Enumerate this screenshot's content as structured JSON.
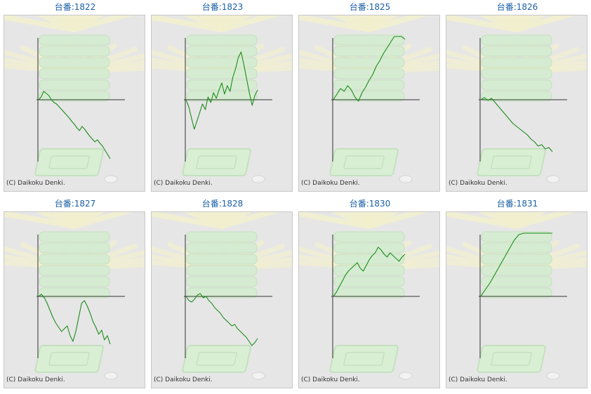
{
  "colors": {
    "title": "#1a5fa6",
    "line": "#1a8c1a",
    "axis": "#333333",
    "panel_bg": "#e6e6e6"
  },
  "copyright": "(C) Daikoku Denki.",
  "chart_data": [
    {
      "type": "line",
      "title": "台番:1822",
      "values": [
        0,
        4,
        12,
        9,
        6,
        0,
        -4,
        -6,
        -10,
        -14,
        -18,
        -22,
        -26,
        -31,
        -35,
        -40,
        -44,
        -38,
        -42,
        -47,
        -52,
        -56,
        -60,
        -57,
        -62,
        -66,
        -72,
        -78,
        -84
      ]
    },
    {
      "type": "line",
      "title": "台番:1823",
      "values": [
        0,
        -10,
        -26,
        -42,
        -30,
        -18,
        -6,
        -14,
        4,
        -4,
        10,
        2,
        14,
        24,
        8,
        20,
        12,
        32,
        44,
        60,
        68,
        50,
        30,
        10,
        -8,
        6,
        14
      ]
    },
    {
      "type": "line",
      "title": "台番:1825",
      "values": [
        0,
        8,
        16,
        12,
        20,
        14,
        4,
        -2,
        10,
        18,
        28,
        36,
        48,
        56,
        66,
        74,
        82,
        90,
        98,
        94,
        86
      ]
    },
    {
      "type": "line",
      "title": "台番:1826",
      "values": [
        0,
        3,
        -1,
        2,
        -4,
        -10,
        -16,
        -22,
        -28,
        -34,
        -38,
        -42,
        -46,
        -50,
        -56,
        -60,
        -66,
        -64,
        -70,
        -68,
        -74
      ]
    },
    {
      "type": "line",
      "title": "台番:1827",
      "values": [
        0,
        3,
        -2,
        -10,
        -20,
        -30,
        -38,
        -44,
        -50,
        -46,
        -42,
        -56,
        -64,
        -50,
        -30,
        -10,
        -6,
        -14,
        -24,
        -36,
        -44,
        -54,
        -48,
        -62,
        -56,
        -68
      ]
    },
    {
      "type": "line",
      "title": "台番:1828",
      "values": [
        0,
        -6,
        -8,
        -4,
        2,
        4,
        -2,
        0,
        -6,
        -10,
        -16,
        -20,
        -24,
        -30,
        -34,
        -38,
        -42,
        -40,
        -46,
        -50,
        -54,
        -58,
        -64,
        -70,
        -66,
        -60
      ]
    },
    {
      "type": "line",
      "title": "台番:1830",
      "values": [
        0,
        6,
        14,
        22,
        30,
        36,
        40,
        44,
        48,
        40,
        36,
        44,
        52,
        58,
        62,
        70,
        66,
        60,
        56,
        62,
        58,
        54,
        50,
        56,
        60
      ]
    },
    {
      "type": "line",
      "title": "台番:1831",
      "values": [
        0,
        10,
        20,
        32,
        44,
        56,
        68,
        80,
        88,
        94,
        98,
        102,
        100,
        96,
        92,
        90
      ]
    }
  ]
}
